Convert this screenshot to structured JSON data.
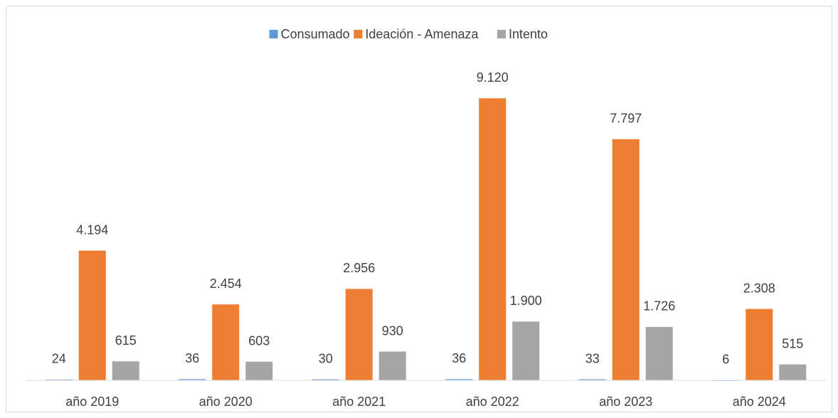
{
  "chart_data": {
    "type": "bar",
    "categories": [
      "año 2019",
      "año 2020",
      "año 2021",
      "año 2022",
      "año 2023",
      "año 2024"
    ],
    "series": [
      {
        "name": "Consumado",
        "color": "#5b9bd5",
        "values": [
          24,
          36,
          30,
          36,
          33,
          6
        ],
        "value_labels": [
          "24",
          "36",
          "30",
          "36",
          "33",
          "6"
        ]
      },
      {
        "name": "Ideación - Amenaza",
        "color": "#ed7d31",
        "values": [
          4194,
          2454,
          2956,
          9120,
          7797,
          2308
        ],
        "value_labels": [
          "4.194",
          "2.454",
          "2.956",
          "9.120",
          "7.797",
          "2.308"
        ]
      },
      {
        "name": "Intento",
        "color": "#a5a5a5",
        "values": [
          615,
          603,
          930,
          1900,
          1726,
          515
        ],
        "value_labels": [
          "615",
          "603",
          "930",
          "1.900",
          "1.726",
          "515"
        ]
      }
    ],
    "ylim": [
      0,
      10000
    ]
  }
}
